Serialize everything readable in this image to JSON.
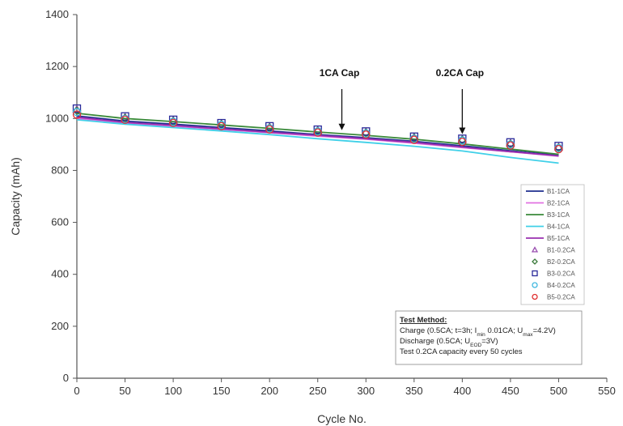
{
  "chart_data": {
    "type": "line",
    "xlabel": "Cycle No.",
    "ylabel": "Capacity (mAh)",
    "xlim": [
      0,
      550
    ],
    "ylim": [
      0,
      1400
    ],
    "xticks": [
      0,
      50,
      100,
      150,
      200,
      250,
      300,
      350,
      400,
      450,
      500,
      550
    ],
    "yticks": [
      0,
      200,
      400,
      600,
      800,
      1000,
      1200,
      1400
    ],
    "grid": false,
    "legend_position": "right",
    "series": [
      {
        "name": "B1-1CA",
        "kind": "line",
        "color": "#1f2f8f",
        "x": [
          0,
          50,
          100,
          150,
          200,
          250,
          300,
          350,
          400,
          450,
          500
        ],
        "y": [
          1010,
          990,
          978,
          965,
          952,
          938,
          926,
          912,
          895,
          876,
          858
        ]
      },
      {
        "name": "B2-1CA",
        "kind": "line",
        "color": "#e070e0",
        "x": [
          0,
          50,
          100,
          150,
          200,
          250,
          300,
          350,
          400,
          450,
          500
        ],
        "y": [
          1000,
          982,
          970,
          958,
          945,
          932,
          920,
          905,
          888,
          872,
          855
        ]
      },
      {
        "name": "B3-1CA",
        "kind": "line",
        "color": "#3a8a3a",
        "x": [
          0,
          50,
          100,
          150,
          200,
          250,
          300,
          350,
          400,
          450,
          500
        ],
        "y": [
          1020,
          1000,
          988,
          975,
          962,
          948,
          935,
          920,
          902,
          882,
          862
        ]
      },
      {
        "name": "B4-1CA",
        "kind": "line",
        "color": "#40d0e8",
        "x": [
          0,
          50,
          100,
          150,
          200,
          250,
          300,
          350,
          400,
          450,
          500
        ],
        "y": [
          995,
          978,
          965,
          952,
          938,
          922,
          908,
          893,
          875,
          850,
          828
        ]
      },
      {
        "name": "B5-1CA",
        "kind": "line",
        "color": "#9a30b0",
        "x": [
          0,
          50,
          100,
          150,
          200,
          250,
          300,
          350,
          400,
          450,
          500
        ],
        "y": [
          1005,
          985,
          973,
          960,
          947,
          935,
          922,
          908,
          890,
          872,
          856
        ]
      },
      {
        "name": "B1-0.2CA",
        "kind": "marker",
        "marker": "triangle",
        "color": "#9a50b0",
        "x": [
          0,
          50,
          100,
          150,
          200,
          250,
          300,
          350,
          400,
          450,
          500
        ],
        "y": [
          1035,
          1005,
          993,
          980,
          968,
          955,
          948,
          928,
          920,
          905,
          890
        ]
      },
      {
        "name": "B2-0.2CA",
        "kind": "marker",
        "marker": "diamond",
        "color": "#3a7a3a",
        "x": [
          0,
          50,
          100,
          150,
          200,
          250,
          300,
          350,
          400,
          450,
          500
        ],
        "y": [
          1030,
          1002,
          990,
          978,
          965,
          952,
          945,
          925,
          918,
          902,
          888
        ]
      },
      {
        "name": "B3-0.2CA",
        "kind": "marker",
        "marker": "square",
        "color": "#2a2a9a",
        "x": [
          0,
          50,
          100,
          150,
          200,
          250,
          300,
          350,
          400,
          450,
          500
        ],
        "y": [
          1038,
          1008,
          995,
          982,
          970,
          957,
          950,
          930,
          922,
          908,
          894
        ]
      },
      {
        "name": "B4-0.2CA",
        "kind": "marker",
        "marker": "circle",
        "color": "#40b8e0",
        "x": [
          0,
          50,
          100,
          150,
          200,
          250,
          300,
          350,
          400,
          450,
          500
        ],
        "y": [
          1025,
          998,
          987,
          975,
          962,
          950,
          942,
          922,
          915,
          900,
          886
        ]
      },
      {
        "name": "B5-0.2CA",
        "kind": "marker",
        "marker": "circle",
        "color": "#e03030",
        "x": [
          0,
          50,
          100,
          150,
          200,
          250,
          300,
          350,
          400,
          450,
          500
        ],
        "y": [
          1015,
          995,
          983,
          970,
          958,
          946,
          938,
          918,
          910,
          896,
          882
        ]
      }
    ],
    "annotations": [
      {
        "text": "1CA Cap",
        "arrow_x": 275,
        "arrow_tip_y": 955
      },
      {
        "text": "0.2CA Cap",
        "arrow_x": 400,
        "arrow_tip_y": 940
      }
    ],
    "textbox": {
      "title": "Test Method:",
      "charge_pre": "Charge (0.5CA; t=3h; I",
      "charge_sub1": "min",
      "charge_mid": " 0.01CA; U",
      "charge_sub2": "max",
      "charge_post": "=4.2V)",
      "discharge_pre": "Discharge (0.5CA; U",
      "discharge_sub": "EOD",
      "discharge_post": "=3V)",
      "note": "Test 0.2CA capacity every 50 cycles"
    }
  }
}
